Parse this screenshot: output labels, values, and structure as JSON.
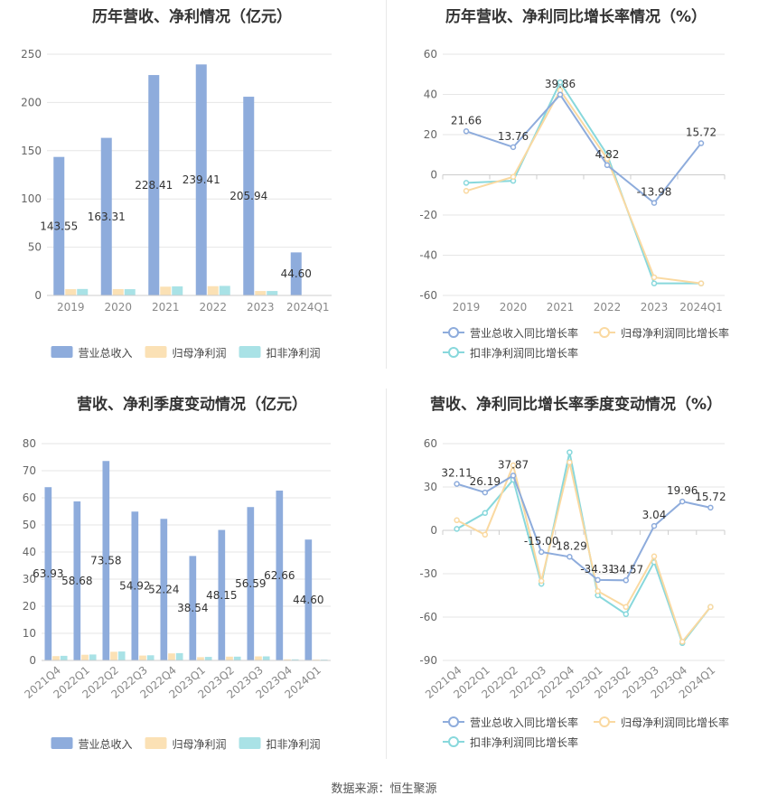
{
  "source_text": "数据来源：恒生聚源",
  "colors": {
    "revenue": "#8eacdc",
    "net_profit": "#fbe1b5",
    "deducted_profit": "#a9e2e6",
    "revenue_line": "#8eacdc",
    "net_line": "#fad9a1",
    "deducted_line": "#88d8dc"
  },
  "chart_data": [
    {
      "id": "annual-bar",
      "type": "bar",
      "title": "历年营收、净利情况（亿元）",
      "categories": [
        "2019",
        "2020",
        "2021",
        "2022",
        "2023",
        "2024Q1"
      ],
      "ylim": [
        0,
        250
      ],
      "yticks": [
        "0",
        "50",
        "100",
        "150",
        "200",
        "250"
      ],
      "grid": true,
      "legend_position": "bottom",
      "series": [
        {
          "name": "营业总收入",
          "values": [
            143.55,
            163.31,
            228.41,
            239.41,
            205.94,
            44.6
          ],
          "labels": [
            "143.55",
            "163.31",
            "228.41",
            "239.41",
            "205.94",
            "44.60"
          ]
        },
        {
          "name": "归母净利润",
          "values": [
            6.5,
            6.6,
            9.1,
            9.6,
            4.6,
            0.3
          ]
        },
        {
          "name": "扣非净利润",
          "values": [
            6.7,
            6.5,
            9.4,
            9.9,
            4.6,
            0.3
          ]
        }
      ]
    },
    {
      "id": "annual-line",
      "type": "line",
      "title": "历年营收、净利同比增长率情况（%）",
      "categories": [
        "2019",
        "2020",
        "2021",
        "2022",
        "2023",
        "2024Q1"
      ],
      "ylim": [
        -60,
        60
      ],
      "yticks": [
        "-60",
        "-40",
        "-20",
        "0",
        "20",
        "40",
        "60"
      ],
      "grid": true,
      "legend_position": "bottom",
      "series": [
        {
          "name": "营业总收入同比增长率",
          "values": [
            21.66,
            13.76,
            39.86,
            4.82,
            -13.98,
            15.72
          ],
          "labels": [
            "21.66",
            "13.76",
            "39.86",
            "4.82",
            "-13.98",
            "15.72"
          ]
        },
        {
          "name": "归母净利润同比增长率",
          "values": [
            -8,
            -1,
            42,
            8,
            -51,
            -54
          ]
        },
        {
          "name": "扣非净利润同比增长率",
          "values": [
            -4,
            -3,
            46,
            10,
            -54,
            -54
          ]
        }
      ]
    },
    {
      "id": "quarter-bar",
      "type": "bar",
      "title": "营收、净利季度变动情况（亿元）",
      "categories": [
        "2021Q4",
        "2022Q1",
        "2022Q2",
        "2022Q3",
        "2022Q4",
        "2023Q1",
        "2023Q2",
        "2023Q3",
        "2023Q4",
        "2024Q1"
      ],
      "ylim": [
        0,
        80
      ],
      "yticks": [
        "0",
        "10",
        "20",
        "30",
        "40",
        "50",
        "60",
        "70",
        "80"
      ],
      "grid": true,
      "legend_position": "bottom",
      "series": [
        {
          "name": "营业总收入",
          "values": [
            63.93,
            58.68,
            73.58,
            54.92,
            52.24,
            38.54,
            48.15,
            56.59,
            62.66,
            44.6
          ],
          "labels": [
            "63.93",
            "58.68",
            "73.58",
            "54.92",
            "52.24",
            "38.54",
            "48.15",
            "56.59",
            "62.66",
            "44.60"
          ]
        },
        {
          "name": "归母净利润",
          "values": [
            1.6,
            2.1,
            3.2,
            1.8,
            2.6,
            1.2,
            1.4,
            1.5,
            0.4,
            0.3
          ]
        },
        {
          "name": "扣非净利润",
          "values": [
            1.7,
            2.2,
            3.3,
            1.9,
            2.7,
            1.3,
            1.4,
            1.5,
            0.4,
            0.3
          ]
        }
      ]
    },
    {
      "id": "quarter-line",
      "type": "line",
      "title": "营收、净利同比增长率季度变动情况（%）",
      "categories": [
        "2021Q4",
        "2022Q1",
        "2022Q2",
        "2022Q3",
        "2022Q4",
        "2023Q1",
        "2023Q2",
        "2023Q3",
        "2023Q4",
        "2024Q1"
      ],
      "ylim": [
        -90,
        60
      ],
      "yticks": [
        "-90",
        "-60",
        "-30",
        "0",
        "30",
        "60"
      ],
      "grid": true,
      "legend_position": "bottom",
      "series": [
        {
          "name": "营业总收入同比增长率",
          "values": [
            32.11,
            26.19,
            37.87,
            -15.0,
            -18.29,
            -34.31,
            -34.57,
            3.04,
            19.96,
            15.72
          ],
          "labels": [
            "32.11",
            "26.19",
            "37.87",
            "-15.00",
            "-18.29",
            "-34.31",
            "-34.57",
            "3.04",
            "19.96",
            "15.72"
          ]
        },
        {
          "name": "归母净利润同比增长率",
          "values": [
            7,
            -3,
            45,
            -35,
            47,
            -42,
            -53,
            -18,
            -77,
            -53
          ]
        },
        {
          "name": "扣非净利润同比增长率",
          "values": [
            1,
            12,
            35,
            -37,
            54,
            -45,
            -58,
            -22,
            -78,
            -53
          ]
        }
      ]
    }
  ]
}
